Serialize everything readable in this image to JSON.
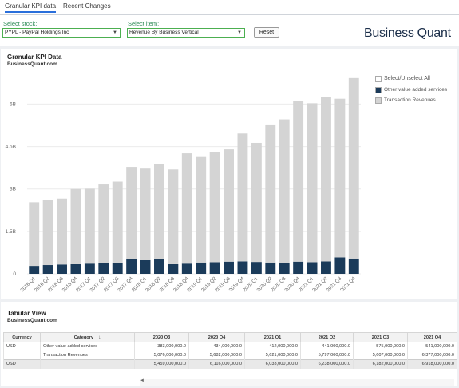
{
  "tabs": [
    "Granular KPI data",
    "Recent Changes"
  ],
  "controls": {
    "stock_label": "Select stock:",
    "stock_value": "PYPL - PayPal Holdings Inc",
    "item_label": "Select item:",
    "item_value": "Revenue By Business Vertical",
    "reset_label": "Reset"
  },
  "logo": "Business Quant",
  "chart_panel": {
    "title": "Granular KPI Data",
    "subtitle": "BusinessQuant.com"
  },
  "legend": {
    "toggle": "Select/Unselect All",
    "items": [
      {
        "label": "Other value added services",
        "color": "#1b3b5a"
      },
      {
        "label": "Transaction Revenues",
        "color": "#d4d4d4"
      }
    ]
  },
  "chart_data": {
    "type": "bar",
    "stacked": true,
    "categories": [
      "2016 Q1",
      "2016 Q2",
      "2016 Q3",
      "2016 Q4",
      "2017 Q1",
      "2017 Q2",
      "2017 Q3",
      "2017 Q4",
      "2018 Q1",
      "2018 Q2",
      "2018 Q3",
      "2018 Q4",
      "2019 Q1",
      "2019 Q2",
      "2019 Q3",
      "2019 Q4",
      "2020 Q1",
      "2020 Q2",
      "2020 Q3",
      "2020 Q4",
      "2021 Q1",
      "2021 Q2",
      "2021 Q3",
      "2021 Q4"
    ],
    "series": [
      {
        "name": "Other value added services",
        "color": "#1b3b5a",
        "values": [
          0.28,
          0.31,
          0.33,
          0.34,
          0.36,
          0.37,
          0.38,
          0.52,
          0.48,
          0.53,
          0.34,
          0.36,
          0.4,
          0.41,
          0.43,
          0.44,
          0.42,
          0.4,
          0.38,
          0.43,
          0.41,
          0.44,
          0.58,
          0.54
        ]
      },
      {
        "name": "Transaction Revenues",
        "color": "#d4d4d4",
        "values": [
          2.25,
          2.3,
          2.33,
          2.66,
          2.65,
          2.79,
          2.88,
          3.26,
          3.24,
          3.35,
          3.35,
          3.9,
          3.73,
          3.9,
          3.97,
          4.52,
          4.21,
          4.88,
          5.08,
          5.68,
          5.62,
          5.8,
          5.61,
          6.38
        ]
      }
    ],
    "yticks": [
      "0",
      "1.5B",
      "3B",
      "4.5B",
      "6B"
    ],
    "ylim": [
      0,
      7
    ]
  },
  "table_panel": {
    "title": "Tabular View",
    "subtitle": "BusinessQuant.com"
  },
  "table": {
    "headers": [
      "Currency",
      "Category",
      "2020 Q3",
      "2020 Q4",
      "2021 Q1",
      "2021 Q2",
      "2021 Q3",
      "2021 Q4"
    ],
    "rows": [
      [
        "USD",
        "Other value added services",
        "383,000,000.0",
        "434,000,000.0",
        "412,000,000.0",
        "441,000,000.0",
        "575,000,000.0",
        "541,000,000.0"
      ],
      [
        "",
        "Transaction Revenues",
        "5,076,000,000.0",
        "5,682,000,000.0",
        "5,621,000,000.0",
        "5,797,000,000.0",
        "5,607,000,000.0",
        "6,377,000,000.0"
      ],
      [
        "USD",
        "",
        "5,459,000,000.0",
        "6,116,000,000.0",
        "6,033,000,000.0",
        "6,238,000,000.0",
        "6,182,000,000.0",
        "6,918,000,000.0"
      ]
    ]
  }
}
